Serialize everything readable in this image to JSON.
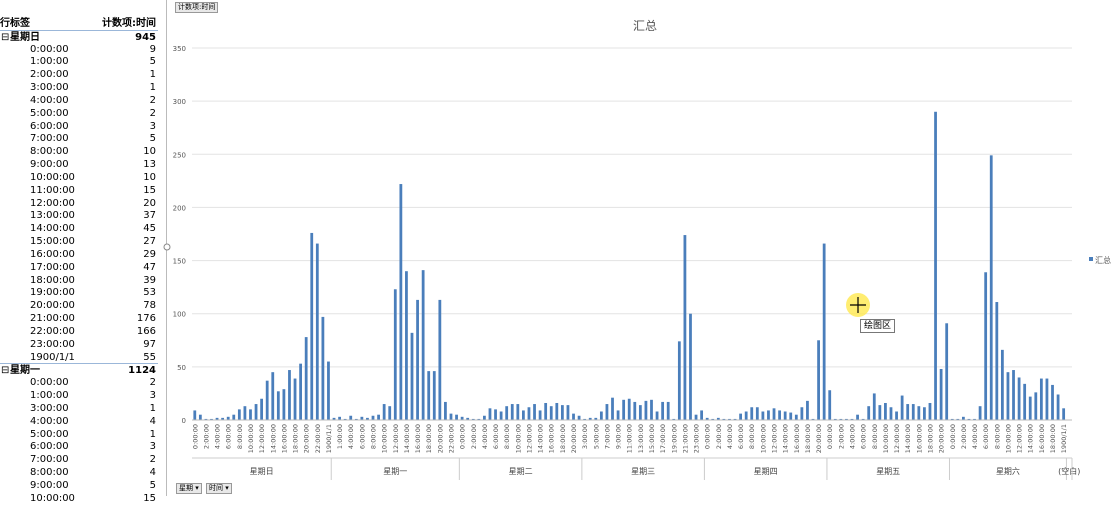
{
  "table": {
    "header": [
      "行标签",
      "计数项:时间"
    ],
    "groups": [
      {
        "label": "星期日",
        "total": 945,
        "rows": [
          [
            "0:00:00",
            9
          ],
          [
            "1:00:00",
            5
          ],
          [
            "2:00:00",
            1
          ],
          [
            "3:00:00",
            1
          ],
          [
            "4:00:00",
            2
          ],
          [
            "5:00:00",
            2
          ],
          [
            "6:00:00",
            3
          ],
          [
            "7:00:00",
            5
          ],
          [
            "8:00:00",
            10
          ],
          [
            "9:00:00",
            13
          ],
          [
            "10:00:00",
            10
          ],
          [
            "11:00:00",
            15
          ],
          [
            "12:00:00",
            20
          ],
          [
            "13:00:00",
            37
          ],
          [
            "14:00:00",
            45
          ],
          [
            "15:00:00",
            27
          ],
          [
            "16:00:00",
            29
          ],
          [
            "17:00:00",
            47
          ],
          [
            "18:00:00",
            39
          ],
          [
            "19:00:00",
            53
          ],
          [
            "20:00:00",
            78
          ],
          [
            "21:00:00",
            176
          ],
          [
            "22:00:00",
            166
          ],
          [
            "23:00:00",
            97
          ],
          [
            "1900/1/1",
            55
          ]
        ]
      },
      {
        "label": "星期一",
        "total": 1124,
        "rows": [
          [
            "0:00:00",
            2
          ],
          [
            "1:00:00",
            3
          ],
          [
            "3:00:00",
            1
          ],
          [
            "4:00:00",
            4
          ],
          [
            "5:00:00",
            1
          ],
          [
            "6:00:00",
            3
          ],
          [
            "7:00:00",
            2
          ],
          [
            "8:00:00",
            4
          ],
          [
            "9:00:00",
            5
          ],
          [
            "10:00:00",
            15
          ]
        ]
      }
    ]
  },
  "ui": {
    "filter_button": "计数项:时间",
    "axis_buttons": [
      "星期",
      "时间"
    ],
    "tooltip": "绘图区"
  },
  "chart_data": {
    "type": "bar",
    "title": "汇总",
    "series_name": "汇总",
    "color": "#4a7ebb",
    "ylim": [
      0,
      350
    ],
    "yticks": [
      0,
      50,
      100,
      150,
      200,
      250,
      300,
      350
    ],
    "grid": true,
    "legend": "right",
    "groups": [
      {
        "name": "星期日",
        "categories": [
          "0:00:00",
          null,
          "2:00:00",
          null,
          "4:00:00",
          null,
          "6:00:00",
          null,
          "8:00:00",
          null,
          "10:00:00",
          null,
          "12:00:00",
          null,
          "14:00:00",
          null,
          "16:00:00",
          null,
          "18:00:00",
          null,
          "20:00:00",
          null,
          "22:00:00",
          null,
          "1900/1/1"
        ],
        "values": [
          9,
          5,
          1,
          1,
          2,
          2,
          3,
          5,
          10,
          13,
          10,
          15,
          20,
          37,
          45,
          27,
          29,
          47,
          39,
          53,
          78,
          176,
          166,
          97,
          55
        ]
      },
      {
        "name": "星期一",
        "categories": [
          null,
          "1:00:00",
          null,
          "4:00:00",
          null,
          "6:00:00",
          null,
          "8:00:00",
          null,
          "10:00:00",
          null,
          "12:00:00",
          null,
          "14:00:00",
          null,
          "16:00:00",
          null,
          "18:00:00",
          null,
          "20:00:00",
          null,
          "22:00:00",
          null
        ],
        "values": [
          2,
          3,
          1,
          4,
          1,
          3,
          2,
          4,
          5,
          15,
          13,
          123,
          222,
          140,
          82,
          113,
          141,
          46,
          46,
          113,
          17,
          6,
          5
        ]
      },
      {
        "name": "星期二",
        "categories": [
          "0:00:00",
          null,
          "2:00:00",
          null,
          "4:00:00",
          null,
          "6:00:00",
          null,
          "8:00:00",
          null,
          "10:00:00",
          null,
          "12:00:00",
          null,
          "14:00:00",
          null,
          "16:00:00",
          null,
          "18:00:00",
          null,
          "20:00:00",
          null
        ],
        "values": [
          3,
          2,
          1,
          1,
          4,
          11,
          10,
          8,
          13,
          15,
          15,
          9,
          12,
          15,
          9,
          16,
          13,
          16,
          14,
          14,
          6,
          4
        ]
      },
      {
        "name": "星期三",
        "categories": [
          "3:00:00",
          null,
          "5:00:00",
          null,
          "7:00:00",
          null,
          "9:00:00",
          null,
          "11:00:00",
          null,
          "13:00:00",
          null,
          "15:00:00",
          null,
          "17:00:00",
          null,
          "19:00:00",
          null,
          "21:00:00",
          null,
          "23:00:00",
          null
        ],
        "values": [
          1,
          2,
          2,
          8,
          15,
          21,
          9,
          19,
          20,
          17,
          14,
          18,
          19,
          8,
          17,
          17,
          1,
          74,
          174,
          100,
          5,
          9
        ]
      },
      {
        "name": "星期四",
        "categories": [
          "0:00:00",
          null,
          "2:00:00",
          null,
          "4:00:00",
          null,
          "6:00:00",
          null,
          "8:00:00",
          null,
          "10:00:00",
          null,
          "12:00:00",
          null,
          "14:00:00",
          null,
          "16:00:00",
          null,
          "18:00:00",
          null,
          "20:00:00",
          null
        ],
        "values": [
          2,
          1,
          2,
          1,
          1,
          1,
          6,
          8,
          12,
          12,
          8,
          9,
          11,
          9,
          8,
          7,
          5,
          12,
          18,
          1,
          75,
          166
        ]
      },
      {
        "name": "星期五",
        "categories": [
          "0:00:00",
          null,
          "2:00:00",
          null,
          "4:00:00",
          null,
          "6:00:00",
          null,
          "8:00:00",
          null,
          "10:00:00",
          null,
          "12:00:00",
          null,
          "14:00:00",
          null,
          "16:00:00",
          null,
          "18:00:00",
          null,
          "20:00:00",
          null
        ],
        "values": [
          28,
          1,
          1,
          1,
          1,
          5,
          1,
          13,
          25,
          14,
          16,
          12,
          8,
          23,
          15,
          15,
          13,
          12,
          16,
          290,
          48,
          91
        ]
      },
      {
        "name": "星期六",
        "categories": [
          "0:00:00",
          null,
          "2:00:00",
          null,
          "4:00:00",
          null,
          "6:00:00",
          null,
          "8:00:00",
          null,
          "10:00:00",
          null,
          "12:00:00",
          null,
          "14:00:00",
          null,
          "16:00:00",
          null,
          "18:00:00",
          null,
          "1900/1/1"
        ],
        "values": [
          1,
          1,
          3,
          1,
          1,
          13,
          139,
          249,
          111,
          66,
          45,
          47,
          40,
          34,
          22,
          26,
          39,
          39,
          33,
          24,
          11
        ]
      },
      {
        "name": "(空白)",
        "categories": [
          null
        ],
        "values": [
          null
        ]
      }
    ]
  }
}
